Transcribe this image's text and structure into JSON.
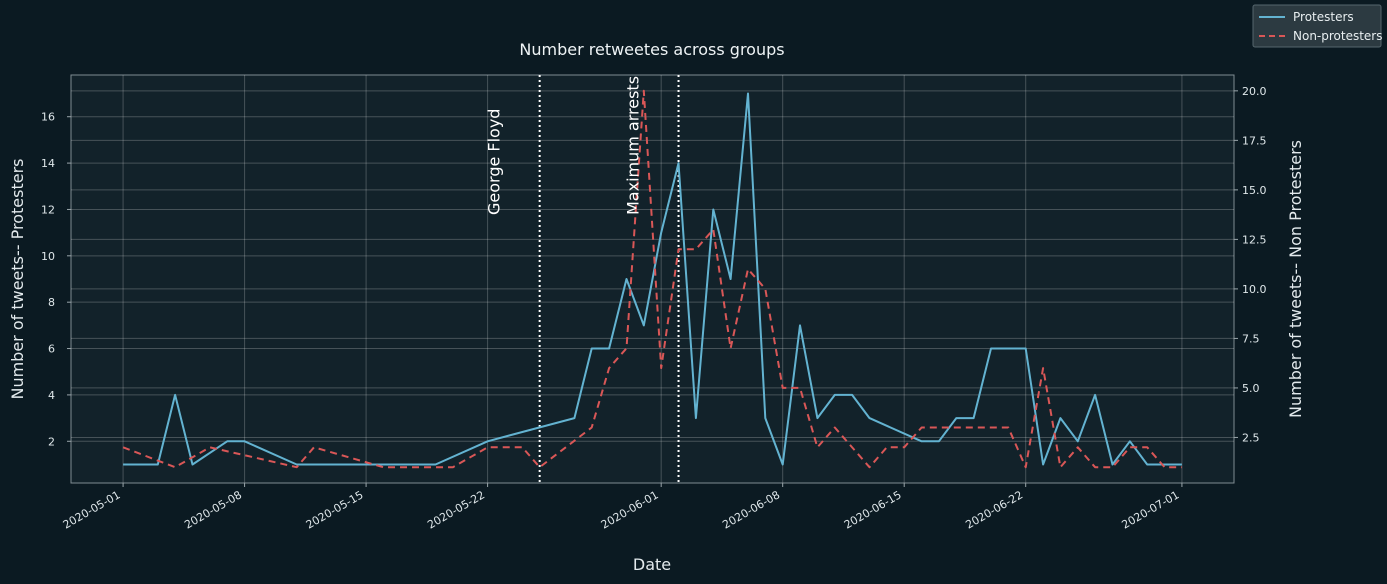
{
  "chart_data": {
    "type": "line",
    "title": "Number retweetes across groups",
    "xlabel": "Date",
    "ylabel_left": "Number of tweets-- Protesters",
    "ylabel_right": "Number of tweets-- Non Protesters",
    "xlim": [
      "2020-04-28",
      "2020-07-04"
    ],
    "ylim_left": [
      0.2,
      17.8
    ],
    "ylim_right": [
      0.2,
      20.8
    ],
    "x_ticks": [
      "2020-05-01",
      "2020-05-08",
      "2020-05-15",
      "2020-05-22",
      "2020-06-01",
      "2020-06-08",
      "2020-06-15",
      "2020-06-22",
      "2020-07-01"
    ],
    "y_ticks_left": [
      "2",
      "4",
      "6",
      "8",
      "10",
      "12",
      "14",
      "16"
    ],
    "y_ticks_right": [
      "2.5",
      "5.0",
      "7.5",
      "10.0",
      "12.5",
      "15.0",
      "17.5",
      "20.0"
    ],
    "grid": true,
    "legend_position": "top-right",
    "series": [
      {
        "name": "Protesters",
        "axis": "left",
        "color": "#63b3d1",
        "style": "solid",
        "points": [
          [
            "2020-05-01",
            1
          ],
          [
            "2020-05-03",
            1
          ],
          [
            "2020-05-04",
            4
          ],
          [
            "2020-05-05",
            1
          ],
          [
            "2020-05-07",
            2
          ],
          [
            "2020-05-08",
            2
          ],
          [
            "2020-05-11",
            1
          ],
          [
            "2020-05-19",
            1
          ],
          [
            "2020-05-22",
            2
          ],
          [
            "2020-05-27",
            3
          ],
          [
            "2020-05-28",
            6
          ],
          [
            "2020-05-29",
            6
          ],
          [
            "2020-05-30",
            9
          ],
          [
            "2020-05-31",
            7
          ],
          [
            "2020-06-01",
            11
          ],
          [
            "2020-06-02",
            14
          ],
          [
            "2020-06-03",
            3
          ],
          [
            "2020-06-04",
            12
          ],
          [
            "2020-06-05",
            9
          ],
          [
            "2020-06-06",
            17
          ],
          [
            "2020-06-07",
            3
          ],
          [
            "2020-06-08",
            1
          ],
          [
            "2020-06-09",
            7
          ],
          [
            "2020-06-10",
            3
          ],
          [
            "2020-06-11",
            4
          ],
          [
            "2020-06-12",
            4
          ],
          [
            "2020-06-13",
            3
          ],
          [
            "2020-06-16",
            2
          ],
          [
            "2020-06-17",
            2
          ],
          [
            "2020-06-18",
            3
          ],
          [
            "2020-06-19",
            3
          ],
          [
            "2020-06-20",
            6
          ],
          [
            "2020-06-22",
            6
          ],
          [
            "2020-06-23",
            1
          ],
          [
            "2020-06-24",
            3
          ],
          [
            "2020-06-25",
            2
          ],
          [
            "2020-06-26",
            4
          ],
          [
            "2020-06-27",
            1
          ],
          [
            "2020-06-28",
            2
          ],
          [
            "2020-06-29",
            1
          ],
          [
            "2020-07-01",
            1
          ]
        ]
      },
      {
        "name": "Non-protesters",
        "axis": "right",
        "color": "#d95757",
        "style": "dashed",
        "points": [
          [
            "2020-05-01",
            2
          ],
          [
            "2020-05-04",
            1
          ],
          [
            "2020-05-06",
            2
          ],
          [
            "2020-05-11",
            1
          ],
          [
            "2020-05-12",
            2
          ],
          [
            "2020-05-16",
            1
          ],
          [
            "2020-05-20",
            1
          ],
          [
            "2020-05-22",
            2
          ],
          [
            "2020-05-24",
            2
          ],
          [
            "2020-05-25",
            1
          ],
          [
            "2020-05-28",
            3
          ],
          [
            "2020-05-29",
            6
          ],
          [
            "2020-05-30",
            7
          ],
          [
            "2020-05-31",
            20
          ],
          [
            "2020-06-01",
            6
          ],
          [
            "2020-06-02",
            12
          ],
          [
            "2020-06-03",
            12
          ],
          [
            "2020-06-04",
            13
          ],
          [
            "2020-06-05",
            7
          ],
          [
            "2020-06-06",
            11
          ],
          [
            "2020-06-07",
            10
          ],
          [
            "2020-06-08",
            5
          ],
          [
            "2020-06-09",
            5
          ],
          [
            "2020-06-10",
            2
          ],
          [
            "2020-06-11",
            3
          ],
          [
            "2020-06-13",
            1
          ],
          [
            "2020-06-14",
            2
          ],
          [
            "2020-06-15",
            2
          ],
          [
            "2020-06-16",
            3
          ],
          [
            "2020-06-21",
            3
          ],
          [
            "2020-06-22",
            1
          ],
          [
            "2020-06-23",
            6
          ],
          [
            "2020-06-24",
            1
          ],
          [
            "2020-06-25",
            2
          ],
          [
            "2020-06-26",
            1
          ],
          [
            "2020-06-27",
            1
          ],
          [
            "2020-06-28",
            2
          ],
          [
            "2020-06-29",
            2
          ],
          [
            "2020-06-30",
            1
          ],
          [
            "2020-07-01",
            1
          ]
        ]
      }
    ],
    "annotations": [
      {
        "date": "2020-05-25",
        "label": "George Floyd",
        "line_style": "dotted",
        "color": "#ffffff"
      },
      {
        "date": "2020-06-02",
        "label": "Maximum arrests",
        "line_style": "dotted",
        "color": "#ffffff"
      }
    ]
  }
}
